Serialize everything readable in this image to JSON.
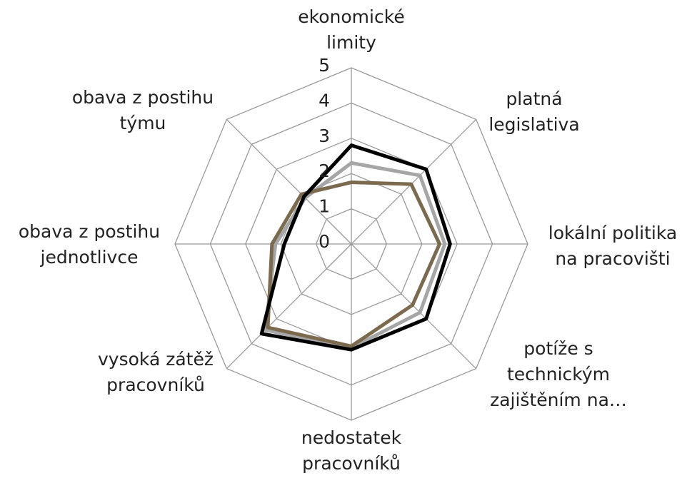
{
  "chart_data": {
    "type": "radar",
    "categories": [
      "ekonomické limity",
      "platná legislativa",
      "lokální politika na pracovišti",
      "potíže s technickým zajištěním na…",
      "nedostatek pracovníků",
      "vysoká zátěž pracovníků",
      "obava z postihu jednotlivce",
      "obava z postihu týmu"
    ],
    "rlim": [
      0,
      5
    ],
    "rticks": [
      0,
      1,
      2,
      3,
      4,
      5
    ],
    "grid": true,
    "series": [
      {
        "color": "#a6a6a6",
        "values": [
          2.3,
          2.75,
          2.65,
          2.75,
          2.95,
          3.45,
          2.15,
          1.85
        ]
      },
      {
        "color": "#7b6a4e",
        "values": [
          1.75,
          2.4,
          2.5,
          2.45,
          2.9,
          3.35,
          2.25,
          2.0
        ]
      },
      {
        "color": "#000000",
        "values": [
          2.8,
          3.0,
          2.8,
          3.0,
          3.0,
          3.6,
          1.9,
          1.9
        ]
      }
    ]
  }
}
